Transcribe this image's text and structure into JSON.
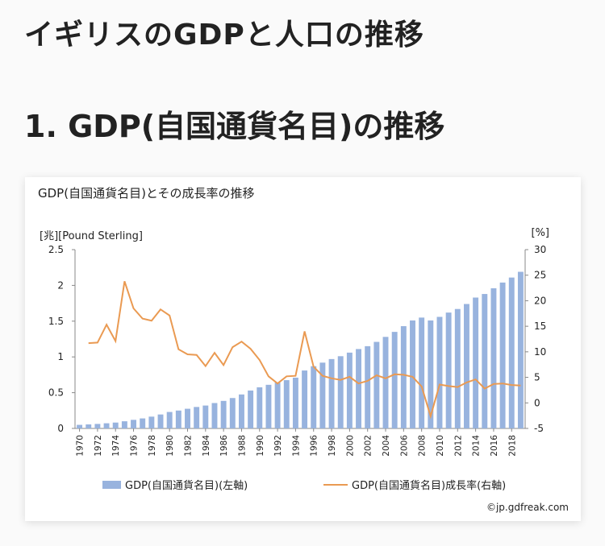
{
  "page": {
    "heading1": "イギリスのGDPと人口の推移",
    "heading2": "1. GDP(自国通貨名目)の推移",
    "credit": "©jp.gdfreak.com"
  },
  "colors": {
    "bar": "#98b3de",
    "line": "#ea9a52",
    "axis": "#888888"
  },
  "chart_data": {
    "type": "bar",
    "title": "GDP(自国通貨名目)とその成長率の推移",
    "y_left_label": "[兆][Pound Sterling]",
    "y_right_label": "[%]",
    "y_left_lim": [
      0,
      2.5
    ],
    "y_left_ticks": [
      "0",
      "0.5",
      "1",
      "1.5",
      "2",
      "2.5"
    ],
    "y_right_lim": [
      -5,
      30
    ],
    "y_right_ticks": [
      "-5",
      "0",
      "5",
      "10",
      "15",
      "20",
      "25",
      "30"
    ],
    "x": [
      1970,
      1971,
      1972,
      1973,
      1974,
      1975,
      1976,
      1977,
      1978,
      1979,
      1980,
      1981,
      1982,
      1983,
      1984,
      1985,
      1986,
      1987,
      1988,
      1989,
      1990,
      1991,
      1992,
      1993,
      1994,
      1995,
      1996,
      1997,
      1998,
      1999,
      2000,
      2001,
      2002,
      2003,
      2004,
      2005,
      2006,
      2007,
      2008,
      2009,
      2010,
      2011,
      2012,
      2013,
      2014,
      2015,
      2016,
      2017,
      2018,
      2019
    ],
    "x_tick_labels": [
      "1970",
      "1972",
      "1974",
      "1976",
      "1978",
      "1980",
      "1982",
      "1984",
      "1986",
      "1988",
      "1990",
      "1992",
      "1994",
      "1996",
      "1998",
      "2000",
      "2002",
      "2004",
      "2006",
      "2008",
      "2010",
      "2012",
      "2014",
      "2016",
      "2018"
    ],
    "series": [
      {
        "name": "GDP(自国通貨名目)(左軸)",
        "type": "bar",
        "axis": "left",
        "values": [
          0.05,
          0.056,
          0.063,
          0.072,
          0.082,
          0.1,
          0.12,
          0.14,
          0.165,
          0.195,
          0.23,
          0.25,
          0.275,
          0.3,
          0.32,
          0.355,
          0.385,
          0.425,
          0.475,
          0.53,
          0.575,
          0.61,
          0.64,
          0.675,
          0.71,
          0.81,
          0.87,
          0.92,
          0.97,
          1.01,
          1.06,
          1.11,
          1.15,
          1.21,
          1.28,
          1.35,
          1.43,
          1.51,
          1.55,
          1.51,
          1.56,
          1.62,
          1.67,
          1.74,
          1.83,
          1.88,
          1.96,
          2.04,
          2.11,
          2.19
        ]
      },
      {
        "name": "GDP(自国通貨名目)成長率(右軸)",
        "type": "line",
        "axis": "right",
        "values": [
          null,
          11.7,
          11.8,
          15.3,
          12.1,
          23.8,
          18.5,
          16.5,
          16.1,
          18.3,
          17.1,
          10.5,
          9.5,
          9.4,
          7.2,
          9.8,
          7.4,
          10.9,
          12.0,
          10.6,
          8.4,
          5.2,
          3.8,
          5.2,
          5.3,
          14.0,
          7.1,
          5.3,
          4.8,
          4.5,
          5.1,
          3.8,
          4.3,
          5.4,
          4.8,
          5.6,
          5.5,
          5.1,
          3.2,
          -2.6,
          3.6,
          3.3,
          3.1,
          4.0,
          4.6,
          2.8,
          3.7,
          3.8,
          3.5,
          3.4
        ]
      }
    ],
    "legend": [
      {
        "label": "GDP(自国通貨名目)(左軸)",
        "kind": "bar"
      },
      {
        "label": "GDP(自国通貨名目)成長率(右軸)",
        "kind": "line"
      }
    ],
    "legend_position": "bottom"
  }
}
